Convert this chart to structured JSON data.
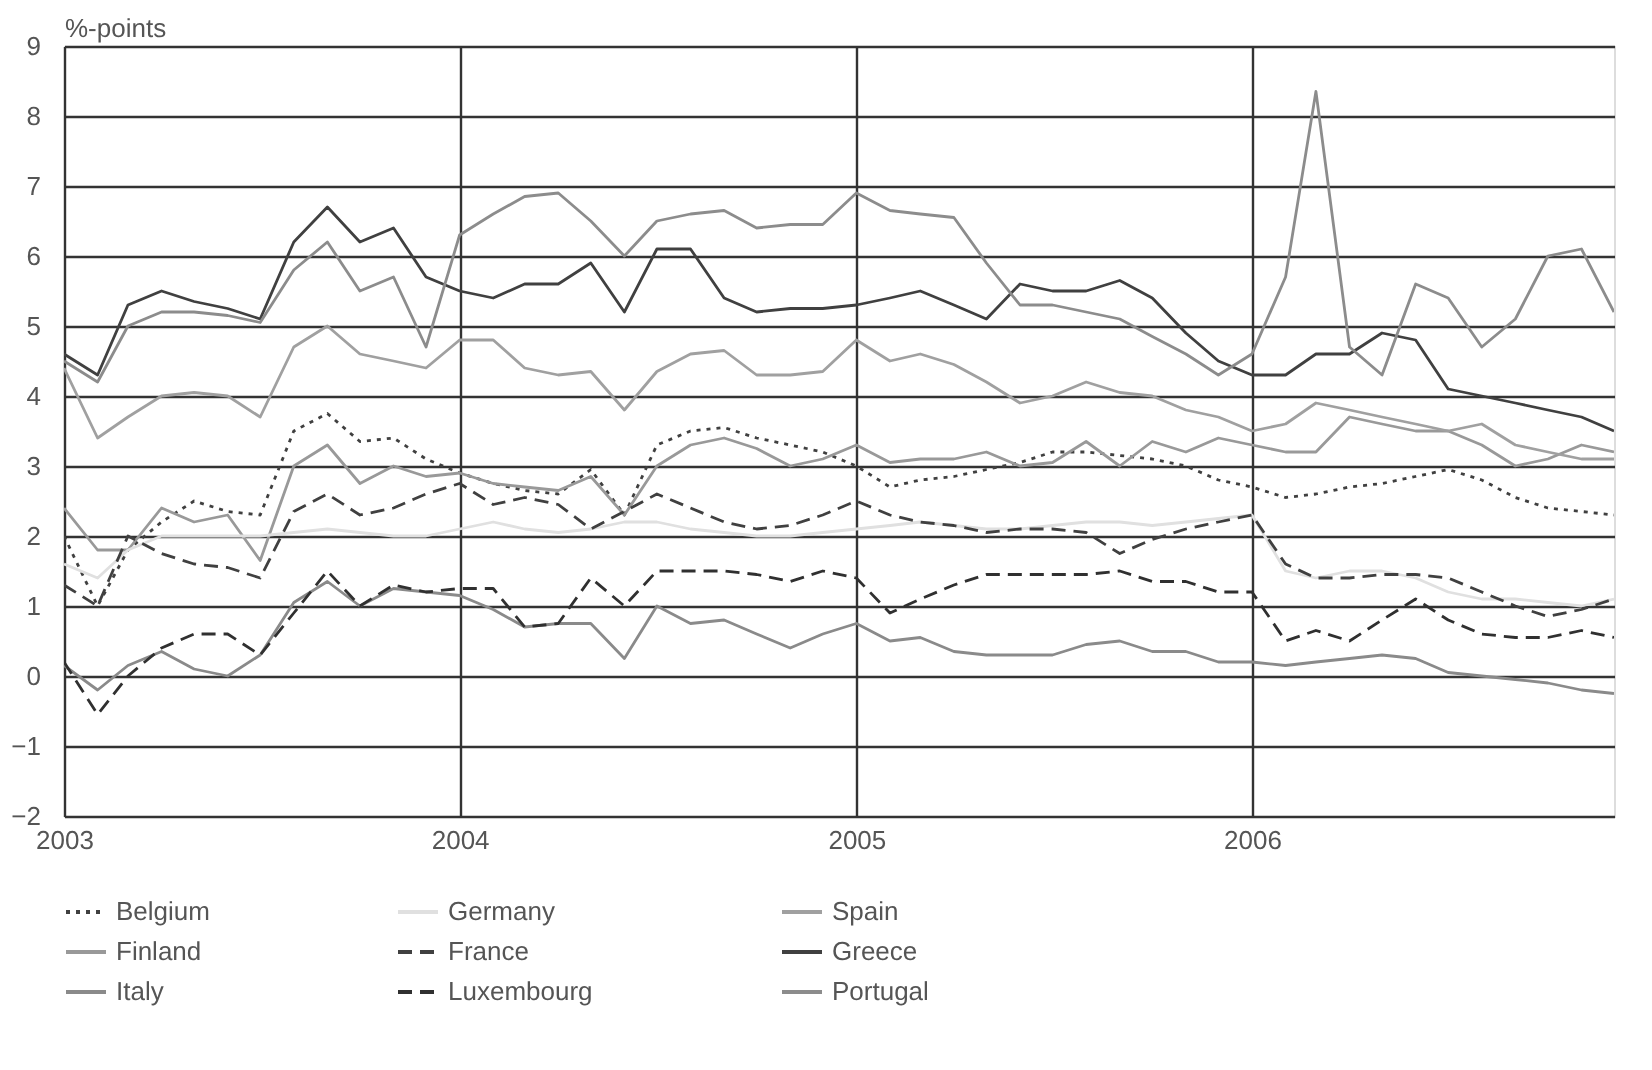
{
  "chart_data": {
    "type": "line",
    "ylabel": "%-points",
    "x": [
      "2003-01",
      "2003-02",
      "2003-03",
      "2003-04",
      "2003-05",
      "2003-06",
      "2003-07",
      "2003-08",
      "2003-09",
      "2003-10",
      "2003-11",
      "2003-12",
      "2004-01",
      "2004-02",
      "2004-03",
      "2004-04",
      "2004-05",
      "2004-06",
      "2004-07",
      "2004-08",
      "2004-09",
      "2004-10",
      "2004-11",
      "2004-12",
      "2005-01",
      "2005-02",
      "2005-03",
      "2005-04",
      "2005-05",
      "2005-06",
      "2005-07",
      "2005-08",
      "2005-09",
      "2005-10",
      "2005-11",
      "2005-12",
      "2006-01",
      "2006-02",
      "2006-03",
      "2006-04",
      "2006-05",
      "2006-06",
      "2006-07",
      "2006-08",
      "2006-09",
      "2006-10",
      "2006-11",
      "2006-12"
    ],
    "xlim": [
      "2003-01",
      "2006-12"
    ],
    "xticks": [
      "2003",
      "2004",
      "2005",
      "2006"
    ],
    "ylim": [
      -2,
      9
    ],
    "yticks": [
      -2,
      -1,
      0,
      1,
      2,
      3,
      4,
      5,
      6,
      7,
      8,
      9
    ],
    "grid": true,
    "legend": "bottom",
    "series": [
      {
        "name": "Belgium",
        "color": "#404040",
        "line_style": "dotted",
        "values": [
          2.0,
          1.0,
          1.8,
          2.2,
          2.5,
          2.35,
          2.3,
          3.5,
          3.75,
          3.35,
          3.4,
          3.1,
          2.9,
          2.75,
          2.65,
          2.6,
          2.95,
          2.3,
          3.3,
          3.5,
          3.55,
          3.4,
          3.3,
          3.2,
          3.0,
          2.7,
          2.8,
          2.85,
          2.95,
          3.05,
          3.2,
          3.2,
          3.15,
          3.1,
          3.0,
          2.8,
          2.7,
          2.55,
          2.6,
          2.7,
          2.75,
          2.85,
          2.95,
          2.8,
          2.55,
          2.4,
          2.35,
          2.3
        ]
      },
      {
        "name": "Finland",
        "color": "#999999",
        "line_style": "solid",
        "values": [
          2.4,
          1.8,
          1.8,
          2.4,
          2.2,
          2.3,
          1.65,
          3.0,
          3.3,
          2.75,
          3.0,
          2.85,
          2.9,
          2.75,
          2.7,
          2.65,
          2.85,
          2.3,
          3.0,
          3.3,
          3.4,
          3.25,
          3.0,
          3.1,
          3.3,
          3.05,
          3.1,
          3.1,
          3.2,
          3.0,
          3.05,
          3.35,
          3.0,
          3.35,
          3.2,
          3.4,
          3.3,
          3.2,
          3.2,
          3.7,
          3.6,
          3.5,
          3.5,
          3.3,
          3.0,
          3.1,
          3.3,
          3.2
        ]
      },
      {
        "name": "Italy",
        "color": "#8a8a8a",
        "line_style": "solid",
        "values": [
          0.15,
          -0.2,
          0.15,
          0.35,
          0.1,
          0.0,
          0.3,
          1.05,
          1.35,
          1.0,
          1.25,
          1.2,
          1.15,
          0.95,
          0.7,
          0.75,
          0.75,
          0.25,
          1.0,
          0.75,
          0.8,
          0.6,
          0.4,
          0.6,
          0.75,
          0.5,
          0.55,
          0.35,
          0.3,
          0.3,
          0.3,
          0.45,
          0.5,
          0.35,
          0.35,
          0.2,
          0.2,
          0.15,
          0.2,
          0.25,
          0.3,
          0.25,
          0.05,
          0.0,
          -0.05,
          -0.1,
          -0.2,
          -0.25
        ]
      },
      {
        "name": "Germany",
        "color": "#e0e0e0",
        "line_style": "solid",
        "values": [
          1.6,
          1.4,
          1.8,
          2.0,
          2.0,
          2.0,
          2.0,
          2.05,
          2.1,
          2.05,
          2.0,
          2.0,
          2.1,
          2.2,
          2.1,
          2.05,
          2.1,
          2.2,
          2.2,
          2.1,
          2.05,
          2.0,
          2.0,
          2.05,
          2.1,
          2.15,
          2.2,
          2.15,
          2.1,
          2.1,
          2.15,
          2.2,
          2.2,
          2.15,
          2.2,
          2.25,
          2.3,
          1.5,
          1.4,
          1.5,
          1.5,
          1.4,
          1.2,
          1.1,
          1.1,
          1.05,
          1.0,
          1.1
        ]
      },
      {
        "name": "France",
        "color": "#404040",
        "line_style": "dashed",
        "values": [
          1.3,
          1.0,
          2.0,
          1.75,
          1.6,
          1.55,
          1.4,
          2.35,
          2.6,
          2.3,
          2.4,
          2.6,
          2.75,
          2.45,
          2.55,
          2.45,
          2.1,
          2.35,
          2.6,
          2.4,
          2.2,
          2.1,
          2.15,
          2.3,
          2.5,
          2.3,
          2.2,
          2.15,
          2.05,
          2.1,
          2.1,
          2.05,
          1.75,
          1.95,
          2.1,
          2.2,
          2.3,
          1.6,
          1.4,
          1.4,
          1.45,
          1.45,
          1.4,
          1.2,
          1.0,
          0.85,
          0.95,
          1.1
        ]
      },
      {
        "name": "Luxembourg",
        "color": "#303030",
        "line_style": "dashed",
        "values": [
          0.2,
          -0.55,
          0.0,
          0.4,
          0.6,
          0.6,
          0.3,
          0.9,
          1.5,
          1.0,
          1.3,
          1.2,
          1.25,
          1.25,
          0.7,
          0.75,
          1.4,
          1.0,
          1.5,
          1.5,
          1.5,
          1.45,
          1.35,
          1.5,
          1.4,
          0.9,
          1.1,
          1.3,
          1.45,
          1.45,
          1.45,
          1.45,
          1.5,
          1.35,
          1.35,
          1.2,
          1.2,
          0.5,
          0.65,
          0.5,
          0.8,
          1.1,
          0.8,
          0.6,
          0.55,
          0.55,
          0.65,
          0.55
        ]
      },
      {
        "name": "Spain",
        "color": "#a0a0a0",
        "line_style": "solid",
        "values": [
          4.4,
          3.4,
          3.7,
          4.0,
          4.05,
          4.0,
          3.7,
          4.7,
          5.0,
          4.6,
          4.5,
          4.4,
          4.8,
          4.8,
          4.4,
          4.3,
          4.35,
          3.8,
          4.35,
          4.6,
          4.65,
          4.3,
          4.3,
          4.35,
          4.8,
          4.5,
          4.6,
          4.45,
          4.2,
          3.9,
          4.0,
          4.2,
          4.05,
          4.0,
          3.8,
          3.7,
          3.5,
          3.6,
          3.9,
          3.8,
          3.7,
          3.6,
          3.5,
          3.6,
          3.3,
          3.2,
          3.1,
          3.1
        ]
      },
      {
        "name": "Greece",
        "color": "#404040",
        "line_style": "solid",
        "values": [
          4.6,
          4.3,
          5.3,
          5.5,
          5.35,
          5.25,
          5.1,
          6.2,
          6.7,
          6.2,
          6.4,
          5.7,
          5.5,
          5.4,
          5.6,
          5.6,
          5.9,
          5.2,
          6.1,
          6.1,
          5.4,
          5.2,
          5.25,
          5.25,
          5.3,
          5.4,
          5.5,
          5.3,
          5.1,
          5.6,
          5.5,
          5.5,
          5.65,
          5.4,
          4.9,
          4.5,
          4.3,
          4.3,
          4.6,
          4.6,
          4.9,
          4.8,
          4.1,
          4.0,
          3.9,
          3.8,
          3.7,
          3.5
        ]
      },
      {
        "name": "Portugal",
        "color": "#8c8c8c",
        "line_style": "solid",
        "values": [
          4.5,
          4.2,
          5.0,
          5.2,
          5.2,
          5.15,
          5.05,
          5.8,
          6.2,
          5.5,
          5.7,
          4.7,
          6.3,
          6.6,
          6.85,
          6.9,
          6.5,
          6.0,
          6.5,
          6.6,
          6.65,
          6.4,
          6.45,
          6.45,
          6.9,
          6.65,
          6.6,
          6.55,
          5.9,
          5.3,
          5.3,
          5.2,
          5.1,
          4.85,
          4.6,
          4.3,
          4.6,
          5.7,
          8.35,
          4.7,
          4.3,
          5.6,
          5.4,
          4.7,
          5.1,
          6.0,
          6.1,
          5.2
        ]
      }
    ]
  }
}
